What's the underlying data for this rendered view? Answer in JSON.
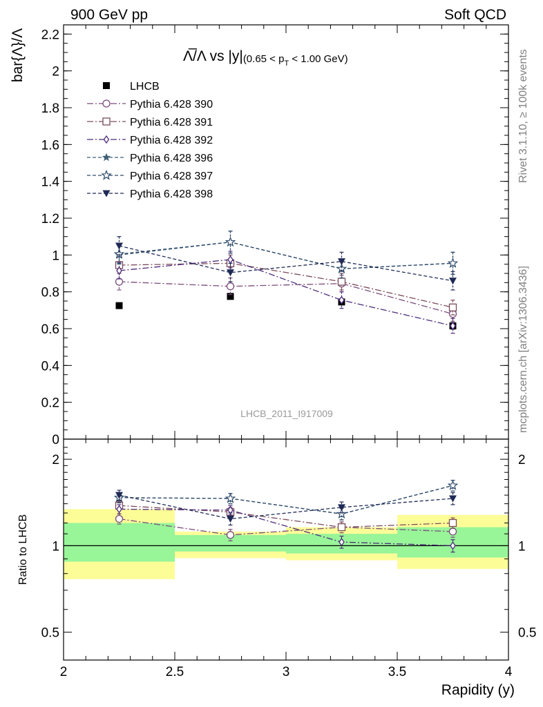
{
  "header": {
    "left": "900 GeV pp",
    "right": "Soft QCD"
  },
  "side_labels": {
    "rivet": "Rivet 3.1.10, ≥ 100k events",
    "mcplots": "mcplots.cern.ch [arXiv:1306.3436]"
  },
  "watermark": "LHCB_2011_I917009",
  "chart_data": [
    {
      "type": "scatter",
      "title_main": "Λ̅/Λ vs |y|",
      "title_sub": "(0.65 < p",
      "title_sub_T": "T",
      "title_sub_end": " < 1.00 GeV)",
      "ylabel": "bar{Λ}/Λ",
      "xlim": [
        2,
        4
      ],
      "ylim": [
        0,
        2.25
      ],
      "yticks": [
        "0",
        "0.2",
        "0.4",
        "0.6",
        "0.8",
        "1",
        "1.2",
        "1.4",
        "1.6",
        "1.8",
        "2",
        "2.2"
      ],
      "x": [
        2.25,
        2.75,
        3.25,
        3.75
      ],
      "series": [
        {
          "name": "LHCB",
          "values": [
            0.725,
            0.775,
            0.745,
            0.615
          ],
          "errors": [
            0.012,
            0.012,
            0.015,
            0.018
          ],
          "marker": "filled-square",
          "color": "#000000",
          "dash": "none"
        },
        {
          "name": "Pythia 6.428 390",
          "values": [
            0.855,
            0.83,
            0.845,
            0.68
          ],
          "errors": [
            0.045,
            0.045,
            0.045,
            0.04
          ],
          "marker": "open-circle",
          "color": "#7a4a7a",
          "dash": "dashdot"
        },
        {
          "name": "Pythia 6.428 391",
          "values": [
            0.945,
            0.955,
            0.855,
            0.715
          ],
          "errors": [
            0.045,
            0.045,
            0.045,
            0.04
          ],
          "marker": "open-square",
          "color": "#7a4a5a",
          "dash": "dashdot"
        },
        {
          "name": "Pythia 6.428 392",
          "values": [
            0.915,
            0.975,
            0.755,
            0.615
          ],
          "errors": [
            0.045,
            0.045,
            0.045,
            0.04
          ],
          "marker": "open-diamond",
          "color": "#4b2a7a",
          "dash": "dashdot"
        },
        {
          "name": "Pythia 6.428 396",
          "values": [
            1.0,
            1.07,
            0.925,
            0.955
          ],
          "errors": [
            0.05,
            0.06,
            0.05,
            0.06
          ],
          "marker": "filled-star",
          "color": "#3f5f74",
          "dash": "dashed"
        },
        {
          "name": "Pythia 6.428 397",
          "values": [
            1.005,
            1.07,
            0.925,
            0.955
          ],
          "errors": [
            0.05,
            0.06,
            0.05,
            0.06
          ],
          "marker": "open-star",
          "color": "#2e4a6a",
          "dash": "dashed"
        },
        {
          "name": "Pythia 6.428 398",
          "values": [
            1.05,
            0.905,
            0.965,
            0.86
          ],
          "errors": [
            0.05,
            0.05,
            0.05,
            0.05
          ],
          "marker": "filled-triangle-down",
          "color": "#1f2a55",
          "dash": "dashed"
        }
      ]
    },
    {
      "type": "scatter",
      "xlabel": "Rapidity (y)",
      "ylabel": "Ratio to LHCB",
      "xlim": [
        2,
        4
      ],
      "ylim": [
        0.4,
        2.35
      ],
      "ylog": true,
      "yticks": [
        "0.5",
        "1",
        "2"
      ],
      "xticks": [
        "2",
        "2.5",
        "3",
        "3.5",
        "4"
      ],
      "bands": {
        "x_edges": [
          2,
          2.5,
          3,
          3.5,
          4
        ],
        "inner": [
          [
            0.88,
            1.2
          ],
          [
            0.955,
            1.09
          ],
          [
            0.94,
            1.1
          ],
          [
            0.91,
            1.16
          ]
        ],
        "outer": [
          [
            0.765,
            1.34
          ],
          [
            0.905,
            1.12
          ],
          [
            0.89,
            1.16
          ],
          [
            0.83,
            1.28
          ]
        ],
        "inner_color": "#98f598",
        "outer_color": "#fdfd98"
      },
      "x": [
        2.25,
        2.75,
        3.25,
        3.75
      ],
      "series": [
        {
          "name": "Pythia 6.428 390",
          "values": [
            1.24,
            1.09,
            1.16,
            1.12
          ],
          "errors": [
            0.05,
            0.05,
            0.05,
            0.05
          ],
          "marker": "open-circle",
          "color": "#7a4a7a",
          "dash": "dashdot"
        },
        {
          "name": "Pythia 6.428 391",
          "values": [
            1.38,
            1.31,
            1.16,
            1.2
          ],
          "errors": [
            0.05,
            0.05,
            0.05,
            0.05
          ],
          "marker": "open-square",
          "color": "#7a4a5a",
          "dash": "dashdot"
        },
        {
          "name": "Pythia 6.428 392",
          "values": [
            1.34,
            1.33,
            1.03,
            1.0
          ],
          "errors": [
            0.05,
            0.05,
            0.05,
            0.05
          ],
          "marker": "open-diamond",
          "color": "#4b2a7a",
          "dash": "dashdot"
        },
        {
          "name": "Pythia 6.428 396",
          "values": [
            1.47,
            1.46,
            1.29,
            1.62
          ],
          "errors": [
            0.06,
            0.06,
            0.06,
            0.07
          ],
          "marker": "filled-star",
          "color": "#3f5f74",
          "dash": "dashed"
        },
        {
          "name": "Pythia 6.428 397",
          "values": [
            1.47,
            1.46,
            1.29,
            1.62
          ],
          "errors": [
            0.06,
            0.06,
            0.06,
            0.07
          ],
          "marker": "open-star",
          "color": "#2e4a6a",
          "dash": "dashed"
        },
        {
          "name": "Pythia 6.428 398",
          "values": [
            1.5,
            1.24,
            1.36,
            1.46
          ],
          "errors": [
            0.06,
            0.06,
            0.06,
            0.07
          ],
          "marker": "filled-triangle-down",
          "color": "#1f2a55",
          "dash": "dashed"
        }
      ]
    }
  ]
}
